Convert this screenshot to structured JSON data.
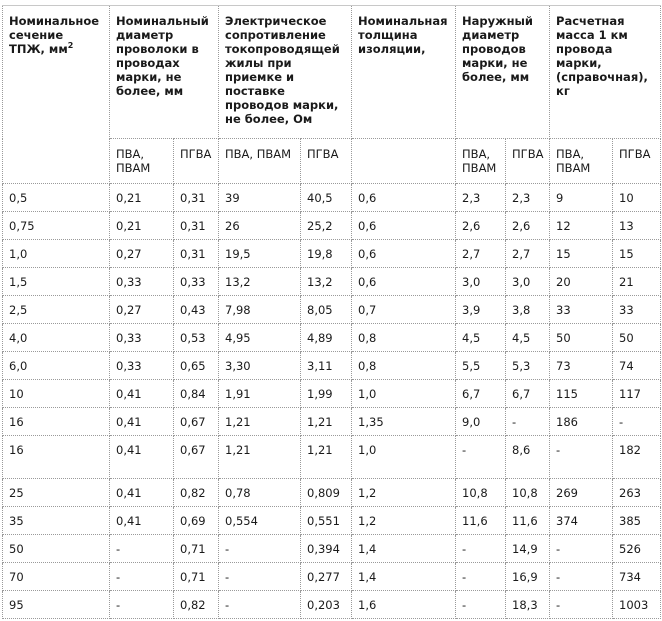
{
  "table": {
    "headers": {
      "section": "Номинальное сечение ТПЖ, мм",
      "section_sup": "2",
      "wire_diameter": "Номинальный диаметр проволоки в проводах марки, не более, мм",
      "resistance": "Электрическое сопротивление токопроводящей жилы при приемке и поставке проводов марки, не более, Ом",
      "insulation": "Номинальная толщина изоляции,",
      "outer_diameter": "Наружный диаметр проводов марки, не более, мм",
      "mass": "Расчетная масса 1 км провода марки, (справочная), кг"
    },
    "subheaders": {
      "wire_pva": "ПВА, ПВАМ",
      "wire_pgva": "ПГВА",
      "res_pva": "ПВА, ПВАМ",
      "res_pgva": "ПГВА",
      "outer_pva": "ПВА, ПВАМ",
      "outer_pgva": "ПГВА",
      "mass_pva": "ПВА, ПВАМ",
      "mass_pgva": "ПГВА"
    },
    "rows": [
      [
        "0,5",
        "0,21",
        "0,31",
        "39",
        "40,5",
        "0,6",
        "2,3",
        "2,3",
        "9",
        "10"
      ],
      [
        "0,75",
        "0,21",
        "0,31",
        "26",
        "25,2",
        "0,6",
        "2,6",
        "2,6",
        "12",
        "13"
      ],
      [
        "1,0",
        "0,27",
        "0,31",
        "19,5",
        "19,8",
        "0,6",
        "2,7",
        "2,7",
        "15",
        "15"
      ],
      [
        "1,5",
        "0,33",
        "0,33",
        "13,2",
        "13,2",
        "0,6",
        "3,0",
        "3,0",
        "20",
        "21"
      ],
      [
        "2,5",
        "0,27",
        "0,43",
        "7,98",
        "8,05",
        "0,7",
        "3,9",
        "3,8",
        "33",
        "33"
      ],
      [
        "4,0",
        "0,33",
        "0,53",
        "4,95",
        "4,89",
        "0,8",
        "4,5",
        "4,5",
        "50",
        "50"
      ],
      [
        "6,0",
        "0,33",
        "0,65",
        "3,30",
        "3,11",
        "0,8",
        "5,5",
        "5,3",
        "73",
        "74"
      ],
      [
        "10",
        "0,41",
        "0,84",
        "1,91",
        "1,99",
        "1,0",
        "6,7",
        "6,7",
        "115",
        "117"
      ],
      [
        "16",
        "0,41",
        "0,67",
        "1,21",
        "1,21",
        "1,35",
        "9,0",
        "-",
        "186",
        "-"
      ],
      [
        "16",
        "0,41",
        "0,67",
        "1,21",
        "1,21",
        "1,0",
        "-",
        "8,6",
        "-",
        "182"
      ],
      [
        "25",
        "0,41",
        "0,82",
        "0,78",
        "0,809",
        "1,2",
        "10,8",
        "10,8",
        "269",
        "263"
      ],
      [
        "35",
        "0,41",
        "0,69",
        "0,554",
        "0,551",
        "1,2",
        "11,6",
        "11,6",
        "374",
        "385"
      ],
      [
        "50",
        "-",
        "0,71",
        "-",
        "0,394",
        "1,4",
        "-",
        "14,9",
        "-",
        "526"
      ],
      [
        "70",
        "-",
        "0,71",
        "-",
        "0,277",
        "1,4",
        "-",
        "16,9",
        "-",
        "734"
      ],
      [
        "95",
        "-",
        "0,82",
        "-",
        "0,203",
        "1,6",
        "-",
        "18,3",
        "-",
        "1003"
      ]
    ]
  }
}
